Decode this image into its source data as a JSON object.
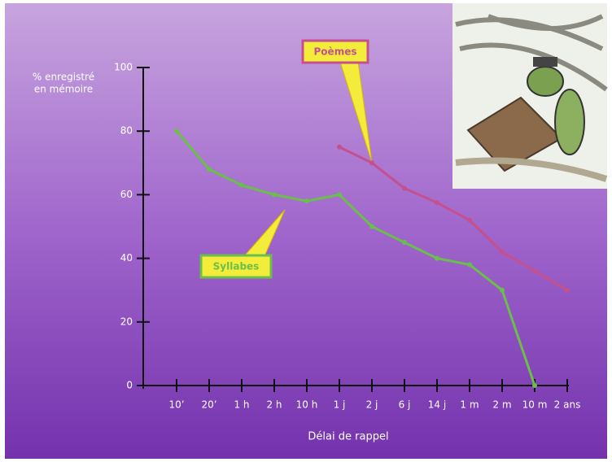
{
  "chart_data": {
    "type": "line",
    "ylabel": [
      "% enregistré",
      "en mémoire"
    ],
    "xlabel": "Délai de rappel",
    "categories": [
      "10’",
      "20’",
      "1 h",
      "2 h",
      "10 h",
      "1 j",
      "2 j",
      "6 j",
      "14 j",
      "1 m",
      "2 m",
      "10 m",
      "2 ans"
    ],
    "series": [
      {
        "name": "Syllabes",
        "color": "#6abf4b",
        "values": [
          80,
          68,
          63,
          60,
          58,
          60,
          50,
          45,
          40,
          38,
          30,
          0,
          null
        ]
      },
      {
        "name": "Poèmes",
        "color": "#c4508c",
        "values": [
          null,
          null,
          null,
          null,
          null,
          75,
          70,
          62,
          57.5,
          52,
          42,
          36,
          30
        ]
      }
    ],
    "ylim": [
      0,
      100
    ],
    "yticks": [
      0,
      20,
      40,
      60,
      80,
      100
    ]
  }
}
